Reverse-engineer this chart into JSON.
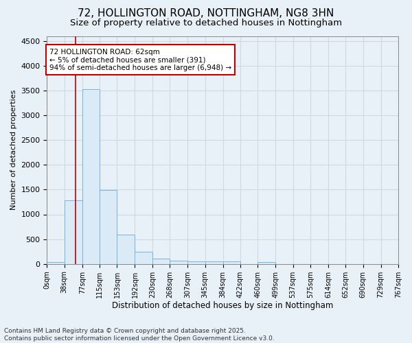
{
  "title_line1": "72, HOLLINGTON ROAD, NOTTINGHAM, NG8 3HN",
  "title_line2": "Size of property relative to detached houses in Nottingham",
  "xlabel": "Distribution of detached houses by size in Nottingham",
  "ylabel": "Number of detached properties",
  "bin_edges": [
    0,
    38,
    77,
    115,
    153,
    192,
    230,
    268,
    307,
    345,
    384,
    422,
    460,
    499,
    537,
    575,
    614,
    652,
    690,
    729,
    767
  ],
  "bar_heights": [
    40,
    1280,
    3530,
    1490,
    590,
    245,
    110,
    70,
    50,
    50,
    50,
    0,
    40,
    0,
    0,
    0,
    0,
    0,
    0,
    0
  ],
  "bar_color": "#daeaf7",
  "bar_edge_color": "#7ab3d9",
  "property_size": 62,
  "red_line_color": "#bb0000",
  "ylim": [
    0,
    4600
  ],
  "yticks": [
    0,
    500,
    1000,
    1500,
    2000,
    2500,
    3000,
    3500,
    4000,
    4500
  ],
  "annotation_text": "72 HOLLINGTON ROAD: 62sqm\n← 5% of detached houses are smaller (391)\n94% of semi-detached houses are larger (6,948) →",
  "annotation_box_color": "#ffffff",
  "annotation_box_edge_color": "#bb0000",
  "footer_line1": "Contains HM Land Registry data © Crown copyright and database right 2025.",
  "footer_line2": "Contains public sector information licensed under the Open Government Licence v3.0.",
  "background_color": "#e8f0f8",
  "grid_color": "#d0d8e4",
  "title_fontsize": 11,
  "subtitle_fontsize": 9.5,
  "tick_label_fontsize": 7,
  "ylabel_fontsize": 8,
  "xlabel_fontsize": 8.5,
  "annotation_fontsize": 7.5,
  "footer_fontsize": 6.5
}
